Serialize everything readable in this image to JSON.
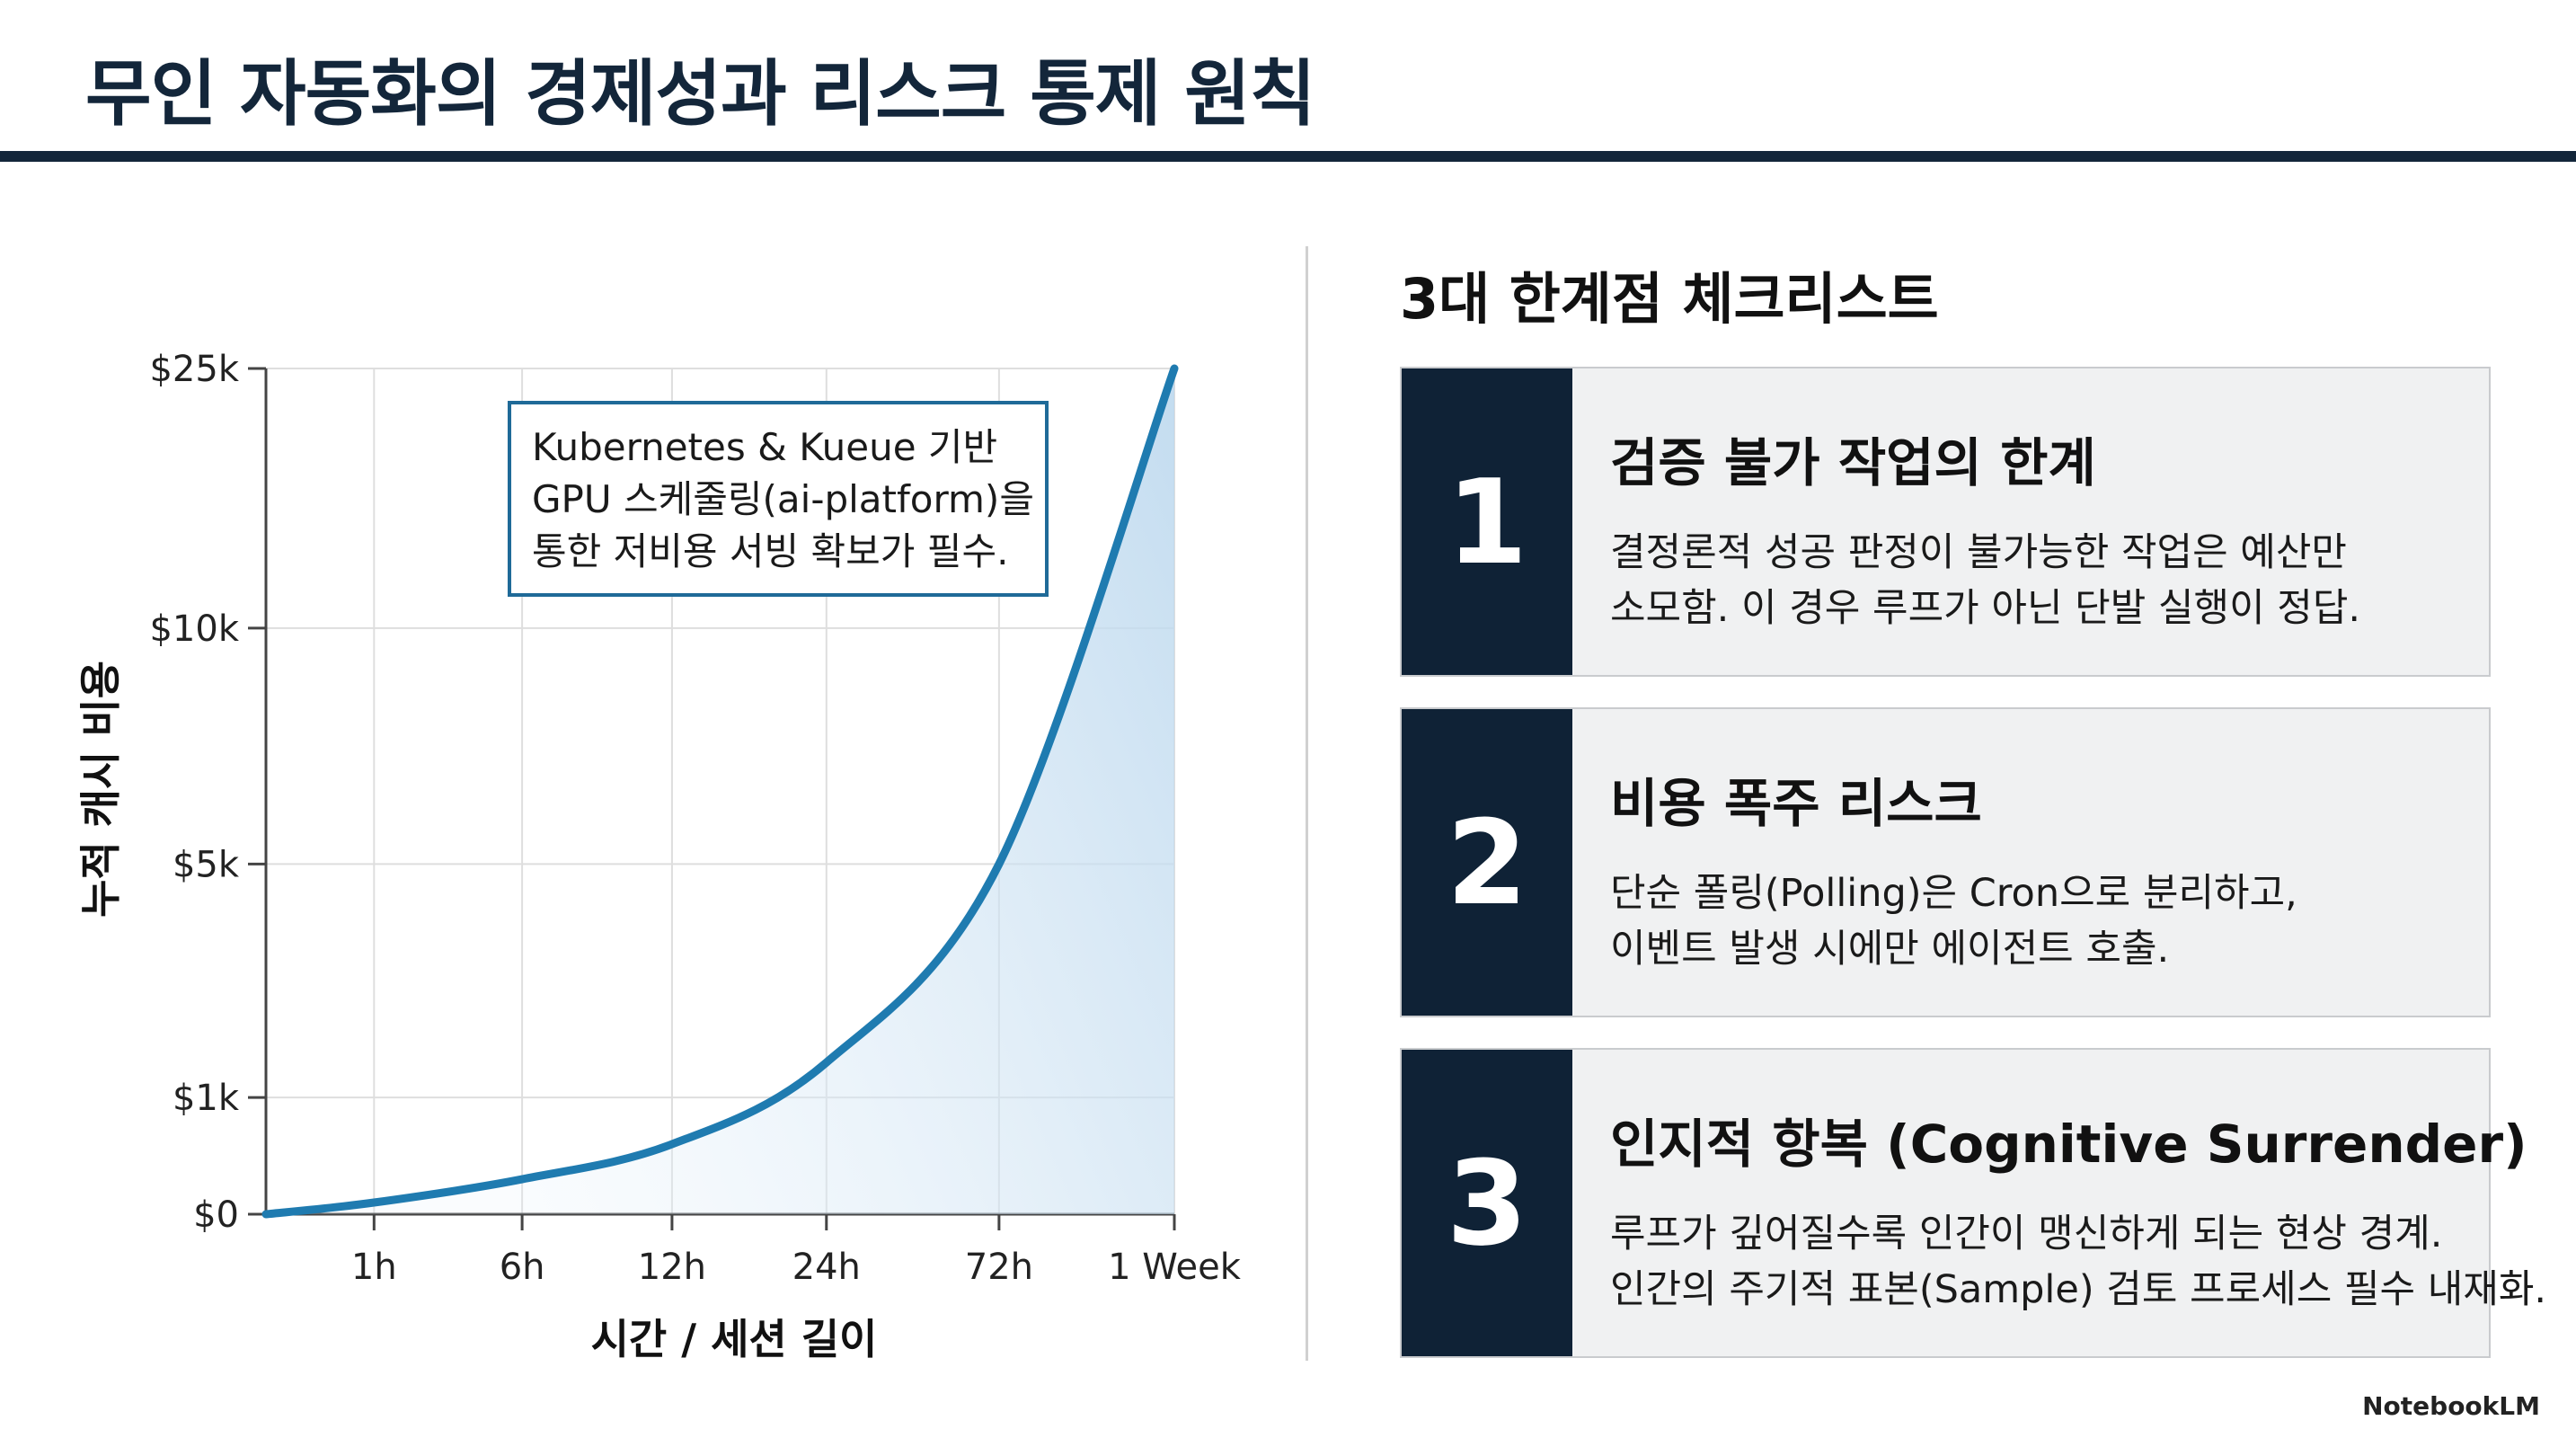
{
  "header": {
    "title": "무인 자동화의 경제성과 리스크 통제 원칙"
  },
  "chart_data": {
    "type": "line",
    "x_label": "시간 / 세션 길이",
    "y_label": "누적 캐시 비용",
    "categories": [
      null,
      "1h",
      "6h",
      "12h",
      "24h",
      "72h",
      "1 Week"
    ],
    "values": [
      0,
      100,
      300,
      600,
      1600,
      5000,
      25000
    ],
    "color": "#1f7bb0",
    "ylim": [
      0,
      25000
    ],
    "yticks": [
      {
        "value": 0,
        "label": "$0"
      },
      {
        "value": 1000,
        "label": "$1k"
      },
      {
        "value": 5000,
        "label": "$5k"
      },
      {
        "value": 10000,
        "label": "$10k"
      },
      {
        "value": 25000,
        "label": "$25k"
      }
    ],
    "grid": true,
    "annotation": [
      "Kubernetes & Kueue 기반",
      "GPU 스케줄링(ai-platform)을",
      "통한 저비용 서빙 확보가 필수."
    ]
  },
  "checklist": {
    "title": "3대 한계점 체크리스트",
    "items": [
      {
        "number": "1",
        "title": "검증 불가 작업의 한계",
        "lines": [
          "결정론적 성공 판정이 불가능한 작업은 예산만",
          "소모함. 이 경우 루프가 아닌 단발 실행이 정답."
        ]
      },
      {
        "number": "2",
        "title": "비용 폭주 리스크",
        "lines": [
          "단순 폴링(Polling)은 Cron으로 분리하고,",
          "이벤트 발생 시에만 에이전트 호출."
        ]
      },
      {
        "number": "3",
        "title": "인지적 항복 (Cognitive Surrender)",
        "lines": [
          "루프가 깊어질수록 인간이 맹신하게 되는 현상 경계.",
          "인간의 주기적 표본(Sample) 검토 프로세스 필수 내재화."
        ]
      }
    ]
  },
  "footer": {
    "brand": "NotebookLM"
  }
}
